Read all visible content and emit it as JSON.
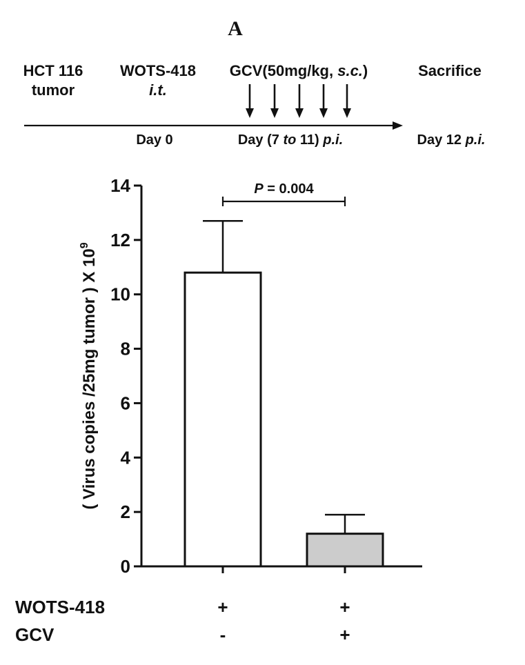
{
  "panel_label": "A",
  "timeline": {
    "labels": [
      {
        "id": "hct",
        "lines": [
          [
            {
              "t": "HCT 116",
              "i": false
            }
          ],
          [
            {
              "t": "tumor",
              "i": false
            }
          ]
        ]
      },
      {
        "id": "wots",
        "lines": [
          [
            {
              "t": "WOTS-418",
              "i": false
            }
          ],
          [
            {
              "t": "i.t.",
              "i": true
            }
          ]
        ]
      },
      {
        "id": "gcv",
        "lines": [
          [
            {
              "t": "GCV(50mg/kg, ",
              "i": false
            },
            {
              "t": "s.c.",
              "i": true
            },
            {
              "t": ")",
              "i": false
            }
          ]
        ]
      },
      {
        "id": "sacrifice",
        "lines": [
          [
            {
              "t": "Sacrifice",
              "i": false
            }
          ]
        ]
      }
    ],
    "day_labels": [
      {
        "id": "day0",
        "parts": [
          {
            "t": "Day 0",
            "i": false
          }
        ]
      },
      {
        "id": "day7",
        "parts": [
          {
            "t": "Day (7 ",
            "i": false
          },
          {
            "t": "to",
            "i": true
          },
          {
            "t": " 11) ",
            "i": false
          },
          {
            "t": "p.i.",
            "i": true
          }
        ]
      },
      {
        "id": "day12",
        "parts": [
          {
            "t": "Day 12 ",
            "i": false
          },
          {
            "t": "p.i.",
            "i": true
          }
        ]
      }
    ],
    "dosing_days": [
      7,
      8,
      9,
      10,
      11
    ]
  },
  "chart_data": {
    "type": "bar",
    "categories": [
      "WOTS-418 + / GCV -",
      "WOTS-418 + / GCV +"
    ],
    "values": [
      10.8,
      1.2
    ],
    "errors": [
      1.9,
      0.7
    ],
    "bar_colors": [
      "#ffffff",
      "#cccccc"
    ],
    "ylabel_parts": [
      {
        "t": "( Virus copies /25mg tumor ) X 10",
        "sup": false
      },
      {
        "t": "9",
        "sup": true
      }
    ],
    "ylim": [
      0,
      14
    ],
    "yticks": [
      0,
      2,
      4,
      6,
      8,
      10,
      12,
      14
    ],
    "significance": {
      "parts": [
        {
          "t": "P",
          "i": true
        },
        {
          "t": " = 0.004",
          "i": false
        }
      ],
      "between": [
        0,
        1
      ]
    },
    "conditions": [
      {
        "label": "WOTS-418",
        "signs": [
          "+",
          "+"
        ]
      },
      {
        "label": "GCV",
        "signs": [
          "-",
          "+"
        ]
      }
    ]
  }
}
